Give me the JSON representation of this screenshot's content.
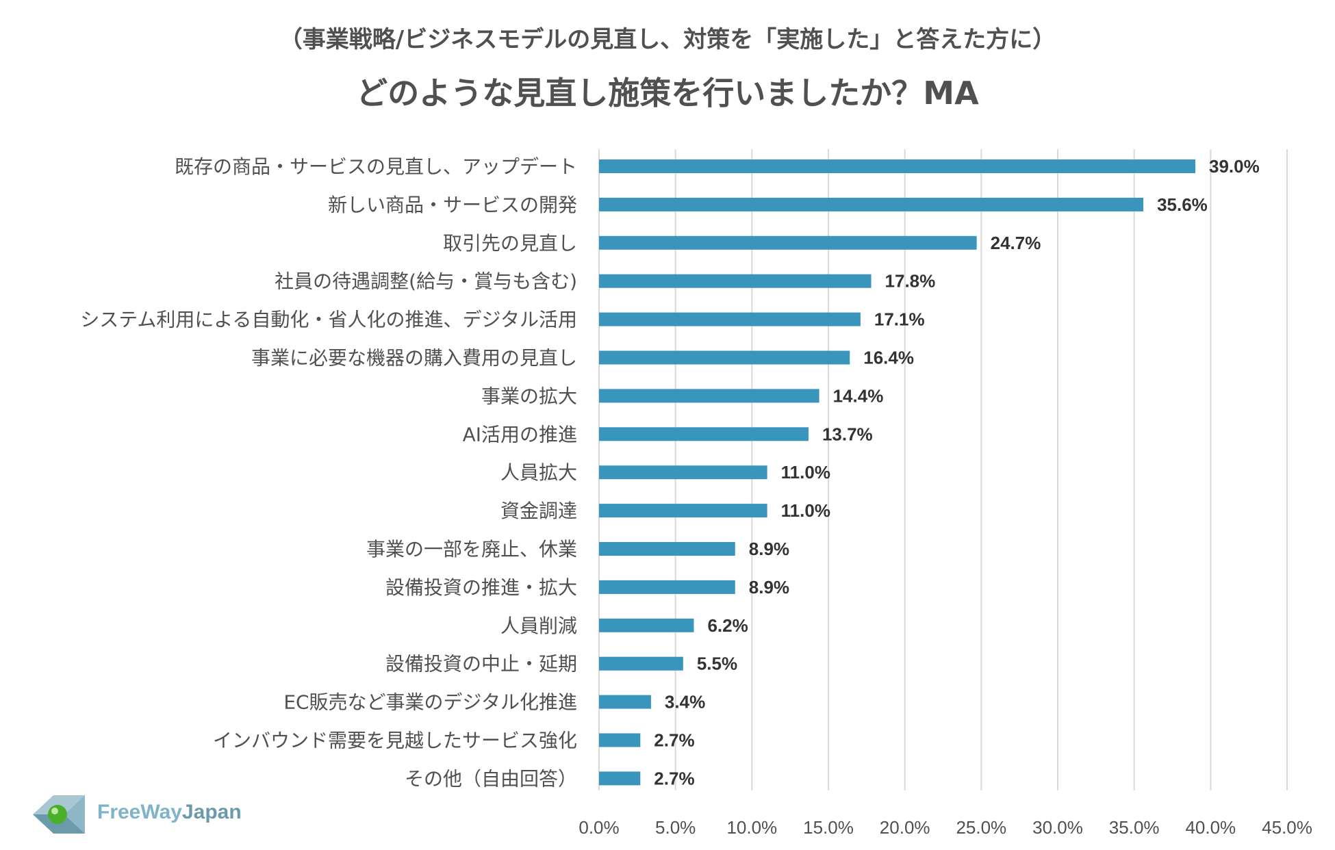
{
  "header": {
    "subtitle": "（事業戦略/ビジネスモデルの見直し、対策を「実施した」と答えた方に）",
    "title": "どのような見直し施策を行いましたか？MA"
  },
  "logo": {
    "part1": "FreeWay",
    "part2": "Japan"
  },
  "colors": {
    "bar": "#3a95bd",
    "grid": "#d9d9d9"
  },
  "chart_data": {
    "type": "bar",
    "orientation": "horizontal",
    "categories": [
      "既存の商品・サービスの見直し、アップデート",
      "新しい商品・サービスの開発",
      "取引先の見直し",
      "社員の待遇調整(給与・賞与も含む)",
      "システム利用による自動化・省人化の推進、デジタル活用",
      "事業に必要な機器の購入費用の見直し",
      "事業の拡大",
      "AI活用の推進",
      "人員拡大",
      "資金調達",
      "事業の一部を廃止、休業",
      "設備投資の推進・拡大",
      "人員削減",
      "設備投資の中止・延期",
      "EC販売など事業のデジタル化推進",
      "インバウンド需要を見越したサービス強化",
      "その他（自由回答）"
    ],
    "values": [
      39.0,
      35.6,
      24.7,
      17.8,
      17.1,
      16.4,
      14.4,
      13.7,
      11.0,
      11.0,
      8.9,
      8.9,
      6.2,
      5.5,
      3.4,
      2.7,
      2.7
    ],
    "value_labels": [
      "39.0%",
      "35.6%",
      "24.7%",
      "17.8%",
      "17.1%",
      "16.4%",
      "14.4%",
      "13.7%",
      "11.0%",
      "11.0%",
      "8.9%",
      "8.9%",
      "6.2%",
      "5.5%",
      "3.4%",
      "2.7%",
      "2.7%"
    ],
    "xlim": [
      0,
      45
    ],
    "ticks": [
      0,
      5,
      10,
      15,
      20,
      25,
      30,
      35,
      40,
      45
    ],
    "tick_labels": [
      "0.0%",
      "5.0%",
      "10.0%",
      "15.0%",
      "20.0%",
      "25.0%",
      "30.0%",
      "35.0%",
      "40.0%",
      "45.0%"
    ],
    "grid": true
  }
}
